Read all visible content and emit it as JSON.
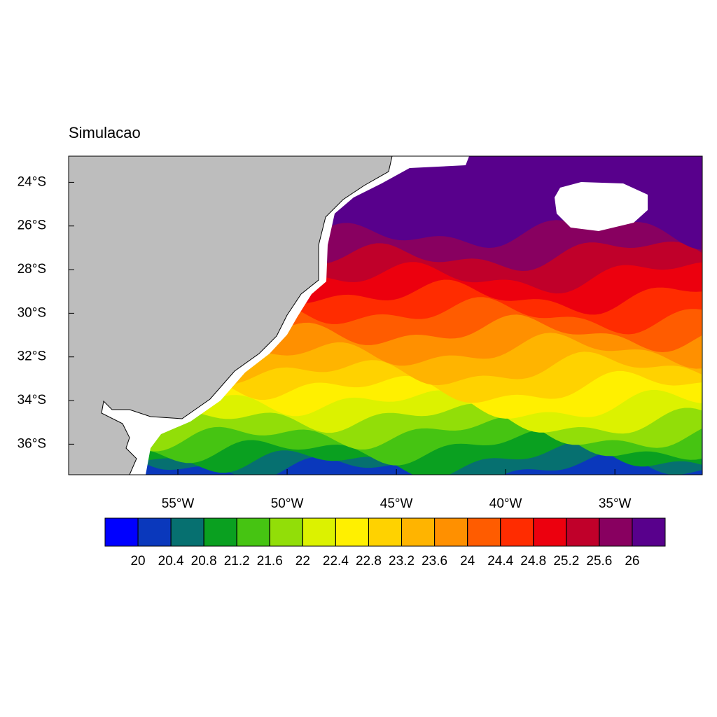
{
  "chart_data": {
    "type": "contour",
    "title": "Simulacao",
    "xlim": [
      -60,
      -31
    ],
    "ylim": [
      -37.4,
      -22.8
    ],
    "xticks": [
      {
        "value": -55,
        "label": "55°W"
      },
      {
        "value": -50,
        "label": "50°W"
      },
      {
        "value": -45,
        "label": "45°W"
      },
      {
        "value": -40,
        "label": "40°W"
      },
      {
        "value": -35,
        "label": "35°W"
      }
    ],
    "yticks": [
      {
        "value": -24,
        "label": "24°S"
      },
      {
        "value": -26,
        "label": "26°S"
      },
      {
        "value": -28,
        "label": "28°S"
      },
      {
        "value": -30,
        "label": "30°S"
      },
      {
        "value": -32,
        "label": "32°S"
      },
      {
        "value": -34,
        "label": "34°S"
      },
      {
        "value": -36,
        "label": "36°S"
      }
    ],
    "levels": [
      20,
      20.4,
      20.8,
      21.2,
      21.6,
      22,
      22.4,
      22.8,
      23.2,
      23.6,
      24,
      24.4,
      24.8,
      25.2,
      25.6,
      26
    ],
    "colors": [
      "#0000ff",
      "#0a38bc",
      "#067070",
      "#0aa020",
      "#46c412",
      "#92de08",
      "#dcf200",
      "#fff000",
      "#ffd200",
      "#ffb400",
      "#ff9000",
      "#ff5c00",
      "#ff2c00",
      "#ec000e",
      "#c0002a",
      "#880060",
      "#58008c"
    ]
  }
}
